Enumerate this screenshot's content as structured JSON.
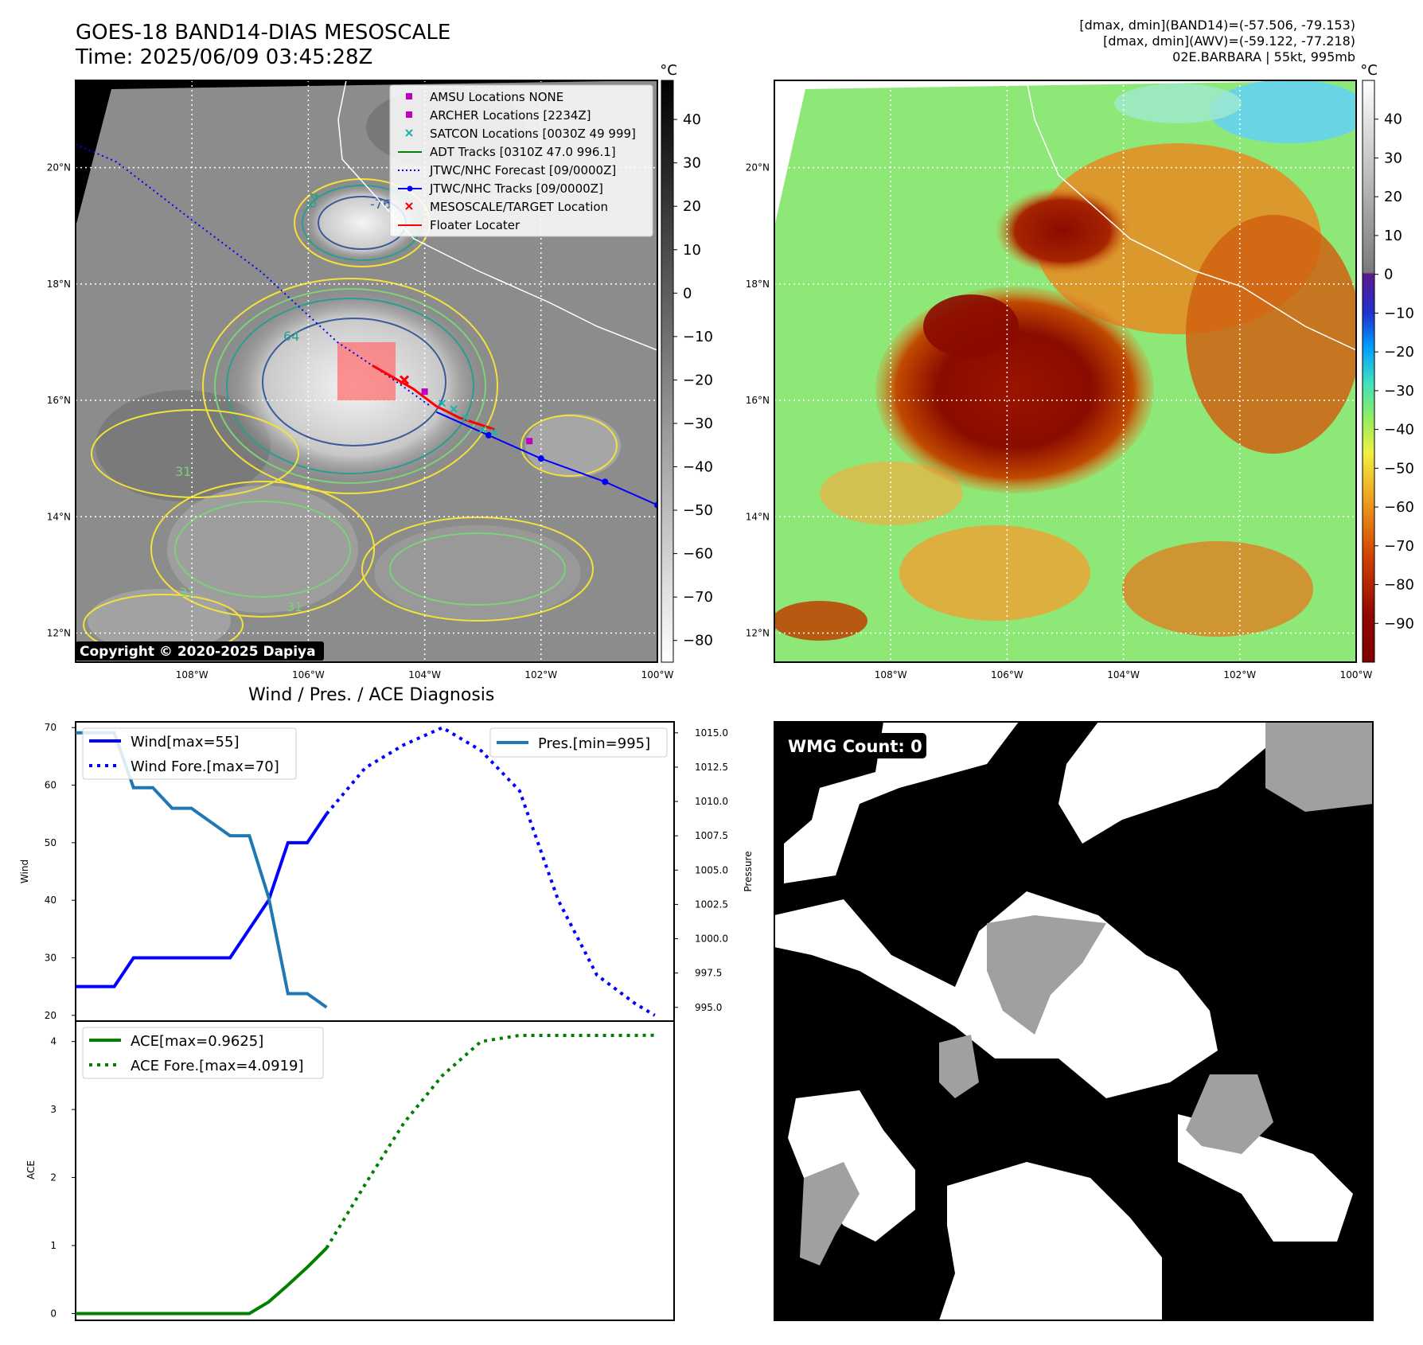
{
  "header": {
    "title_line1": "GOES-18 BAND14-DIAS MESOSCALE",
    "title_line2": "Time: 2025/06/09 03:45:28Z",
    "info_line1": "[dmax, dmin](BAND14)=(-57.506, -79.153)",
    "info_line2": "[dmax, dmin](AWV)=(-59.122, -77.218)",
    "info_line3": "02E.BARBARA | 55kt, 995mb"
  },
  "map": {
    "lat_labels": [
      "20°N",
      "18°N",
      "16°N",
      "14°N",
      "12°N"
    ],
    "lat_values": [
      20,
      18,
      16,
      14,
      12
    ],
    "lon_labels": [
      "108°W",
      "106°W",
      "104°W",
      "102°W",
      "100°W"
    ],
    "lon_values": [
      -108,
      -106,
      -104,
      -102,
      -100
    ],
    "extent": {
      "lon_min": -110,
      "lon_max": -100,
      "lat_min": 11.5,
      "lat_max": 21.5
    },
    "copyright": "Copyright © 2020-2025 Dapiya",
    "contour_labels": [
      "-76",
      "64",
      "64",
      "31",
      "31",
      "31"
    ],
    "legend": [
      {
        "label": "AMSU Locations NONE",
        "marker": "square",
        "color": "#c000c0"
      },
      {
        "label": "ARCHER Locations [2234Z]",
        "marker": "square",
        "color": "#c000c0"
      },
      {
        "label": "SATCON Locations [0030Z 49 999]",
        "marker": "x",
        "color": "#20b2aa"
      },
      {
        "label": "ADT Tracks [0310Z 47.0 996.1]",
        "marker": "line",
        "color": "#008000"
      },
      {
        "label": "JTWC/NHC Forecast [09/0000Z]",
        "marker": "dotted",
        "color": "#0000ff"
      },
      {
        "label": "JTWC/NHC Tracks [09/0000Z]",
        "marker": "line-dot",
        "color": "#0000ff"
      },
      {
        "label": "MESOSCALE/TARGET Location",
        "marker": "x",
        "color": "#ff0000"
      },
      {
        "label": "Floater Locater",
        "marker": "line",
        "color": "#ff0000"
      }
    ],
    "jtwc_track": [
      [
        -103.8,
        15.8
      ],
      [
        -102.9,
        15.4
      ],
      [
        -102.0,
        15.0
      ],
      [
        -100.9,
        14.6
      ],
      [
        -100.0,
        14.2
      ]
    ],
    "forecast_track": [
      [
        -110.0,
        20.4
      ],
      [
        -109.3,
        20.1
      ],
      [
        -108.0,
        19.1
      ],
      [
        -106.8,
        18.2
      ],
      [
        -105.5,
        17.0
      ],
      [
        -104.6,
        16.4
      ],
      [
        -103.9,
        15.9
      ]
    ],
    "target": [
      -104.35,
      16.35
    ]
  },
  "colorbar_left": {
    "unit": "°C",
    "ticks": [
      "40",
      "30",
      "20",
      "10",
      "0",
      "−10",
      "−20",
      "−30",
      "−40",
      "−50",
      "−60",
      "−70",
      "−80"
    ],
    "values": [
      40,
      30,
      20,
      10,
      0,
      -10,
      -20,
      -30,
      -40,
      -50,
      -60,
      -70,
      -80
    ],
    "vmin": -85,
    "vmax": 49
  },
  "colorbar_right": {
    "unit": "°C",
    "ticks": [
      "40",
      "30",
      "20",
      "10",
      "0",
      "−10",
      "−20",
      "−30",
      "−40",
      "−50",
      "−60",
      "−70",
      "−80",
      "−90"
    ],
    "values": [
      40,
      30,
      20,
      10,
      0,
      -10,
      -20,
      -30,
      -40,
      -50,
      -60,
      -70,
      -80,
      -90
    ],
    "vmin": -100,
    "vmax": 50
  },
  "diagnosis": {
    "title": "Wind / Pres. / ACE Diagnosis"
  },
  "wmg": {
    "label": "WMG Count: 0"
  },
  "chart_data": [
    {
      "type": "line",
      "title": "Wind / Pres. / ACE Diagnosis",
      "ylabel": "Wind",
      "y2label": "Pressure",
      "ylim": [
        19,
        71
      ],
      "y2lim": [
        994,
        1015.8
      ],
      "yticks": [
        20,
        30,
        40,
        50,
        60,
        70
      ],
      "y2ticks": [
        995.0,
        997.5,
        1000.0,
        1002.5,
        1005.0,
        1007.5,
        1010.0,
        1012.5,
        1015.0
      ],
      "y2tick_labels": [
        "995.0",
        "997.5",
        "1000.0",
        "1002.5",
        "1005.0",
        "1007.5",
        "1010.0",
        "1012.5",
        "1015.0"
      ],
      "xlim": [
        0,
        31
      ],
      "legend_left": [
        "Wind[max=55]",
        "Wind Fore.[max=70]"
      ],
      "legend_right": [
        "Pres.[min=995]"
      ],
      "series": [
        {
          "name": "Wind[max=55]",
          "color": "#0000ff",
          "style": "solid",
          "axis": "left",
          "x": [
            0,
            1,
            2,
            3,
            4,
            5,
            6,
            7,
            8,
            9,
            10,
            11,
            12,
            13
          ],
          "values": [
            25,
            25,
            25,
            30,
            30,
            30,
            30,
            30,
            30,
            35,
            40,
            50,
            50,
            55
          ]
        },
        {
          "name": "Wind Fore.[max=70]",
          "color": "#0000ff",
          "style": "dotted",
          "axis": "left",
          "x": [
            13,
            15,
            17,
            19,
            21,
            23,
            25,
            27,
            29,
            30
          ],
          "values": [
            55,
            63,
            67,
            70,
            66,
            59,
            40,
            27,
            22,
            20
          ]
        },
        {
          "name": "Pres.[min=995]",
          "color": "#1f77b4",
          "style": "solid",
          "axis": "right",
          "x": [
            0,
            1,
            2,
            3,
            4,
            5,
            6,
            7,
            8,
            9,
            10,
            11,
            12,
            13
          ],
          "values": [
            1015,
            1015,
            1015,
            1011,
            1011,
            1009.5,
            1009.5,
            1008.5,
            1007.5,
            1007.5,
            1003,
            996,
            996,
            995
          ]
        }
      ]
    },
    {
      "type": "line",
      "ylabel": "ACE",
      "ylim": [
        -0.1,
        4.3
      ],
      "yticks": [
        0,
        1,
        2,
        3,
        4
      ],
      "xlim": [
        0,
        31
      ],
      "legend": [
        "ACE[max=0.9625]",
        "ACE Fore.[max=4.0919]"
      ],
      "series": [
        {
          "name": "ACE[max=0.9625]",
          "color": "#008000",
          "style": "solid",
          "x": [
            0,
            1,
            2,
            3,
            4,
            5,
            6,
            7,
            8,
            9,
            10,
            11,
            12,
            13
          ],
          "values": [
            0,
            0,
            0,
            0,
            0,
            0,
            0,
            0,
            0,
            0,
            0.17,
            0.42,
            0.68,
            0.9625
          ]
        },
        {
          "name": "ACE Fore.[max=4.0919]",
          "color": "#008000",
          "style": "dotted",
          "x": [
            13,
            15,
            17,
            19,
            21,
            23,
            25,
            27,
            29,
            30
          ],
          "values": [
            0.9625,
            1.9,
            2.8,
            3.5,
            4.0,
            4.09,
            4.09,
            4.09,
            4.09,
            4.0919
          ]
        }
      ]
    }
  ]
}
